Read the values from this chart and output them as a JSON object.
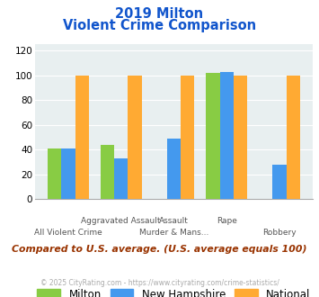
{
  "title_line1": "2019 Milton",
  "title_line2": "Violent Crime Comparison",
  "milton": [
    41,
    44,
    0,
    102,
    0
  ],
  "new_hampshire": [
    41,
    33,
    49,
    103,
    28
  ],
  "national": [
    100,
    100,
    100,
    100,
    100
  ],
  "color_milton": "#88cc44",
  "color_nh": "#4499ee",
  "color_national": "#ffaa33",
  "ylabel_ticks": [
    0,
    20,
    40,
    60,
    80,
    100,
    120
  ],
  "ylim": [
    0,
    125
  ],
  "bg_color": "#e8eff0",
  "title_color": "#1155cc",
  "footer_text": "Compared to U.S. average. (U.S. average equals 100)",
  "copyright_text": "© 2025 CityRating.com - https://www.cityrating.com/crime-statistics/",
  "legend_labels": [
    "Milton",
    "New Hampshire",
    "National"
  ],
  "footer_color": "#993300",
  "copyright_color": "#aaaaaa",
  "line1_labels": [
    "",
    "Aggravated Assault",
    "Assault",
    "Rape",
    ""
  ],
  "line2_labels": [
    "All Violent Crime",
    "",
    "Murder & Mans...",
    "",
    "Robbery"
  ]
}
